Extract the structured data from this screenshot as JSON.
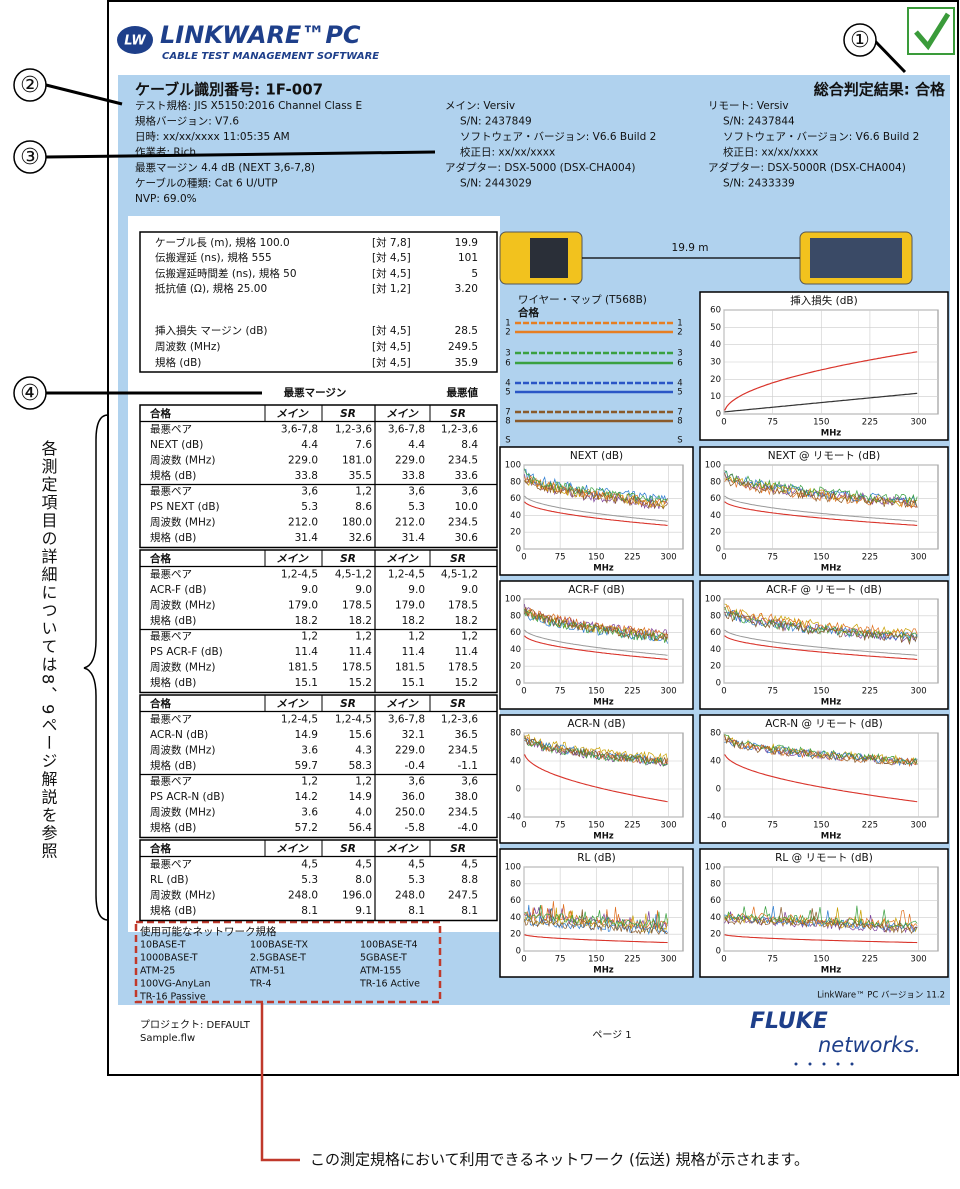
{
  "annotations": {
    "markers": [
      "①",
      "②",
      "③",
      "④"
    ],
    "side_note": "各測定項目の詳細については8、9ページ解説を参照",
    "caption": "この測定規格において利用できるネットワーク (伝送) 規格が示されます。"
  },
  "logo": {
    "badge": "LW",
    "brand": "LINKWARE™PC",
    "subtitle": "CABLE TEST MANAGEMENT SOFTWARE"
  },
  "header": {
    "cable_id": "ケーブル識別番号: 1F-007",
    "overall": "総合判定結果: 合格",
    "left": [
      "テスト規格: JIS X5150:2016 Channel Class E",
      "規格バージョン: V7.6",
      "日時: xx/xx/xxxx 11:05:35 AM",
      "作業者: Rich",
      "最悪マージン 4.4 dB (NEXT 3,6-7,8)",
      "ケーブルの種類: Cat 6 U/UTP",
      "NVP: 69.0%"
    ],
    "main": [
      "メイン: Versiv",
      "S/N: 2437849",
      "ソフトウェア・バージョン: V6.6 Build 2",
      "校正日: xx/xx/xxxx",
      "アダプター: DSX-5000 (DSX-CHA004)",
      "S/N: 2443029"
    ],
    "remote": [
      "リモート: Versiv",
      "S/N: 2437844",
      "ソフトウェア・バージョン: V6.6 Build 2",
      "校正日: xx/xx/xxxx",
      "アダプター: DSX-5000R (DSX-CHA004)",
      "S/N: 2433339"
    ]
  },
  "summary": {
    "rows": [
      [
        "ケーブル長 (m), 規格 100.0",
        "[対 7,8]",
        "19.9"
      ],
      [
        "伝搬遅延 (ns), 規格 555",
        "[対 4,5]",
        "101"
      ],
      [
        "伝搬遅延時間差 (ns), 規格 50",
        "[対 4,5]",
        "5"
      ],
      [
        "抵抗値 (Ω), 規格 25.00",
        "[対 1,2]",
        "3.20"
      ],
      [
        "挿入損失 マージン (dB)",
        "[対 4,5]",
        "28.5"
      ],
      [
        "周波数 (MHz)",
        "[対 4,5]",
        "249.5"
      ],
      [
        "規格 (dB)",
        "[対 4,5]",
        "35.9"
      ]
    ],
    "margin_header": "最悪マージン",
    "worst_header": "最悪値"
  },
  "tables": [
    {
      "rows": [
        [
          "合格",
          "メイン",
          "SR",
          "メイン",
          "SR"
        ],
        [
          "最悪ペア",
          "3,6-7,8",
          "1,2-3,6",
          "3,6-7,8",
          "1,2-3,6"
        ],
        [
          "NEXT (dB)",
          "4.4",
          "7.6",
          "4.4",
          "8.4"
        ],
        [
          "周波数 (MHz)",
          "229.0",
          "181.0",
          "229.0",
          "234.5"
        ],
        [
          "規格 (dB)",
          "33.8",
          "35.5",
          "33.8",
          "33.6"
        ],
        [
          "最悪ペア",
          "3,6",
          "1,2",
          "3,6",
          "3,6"
        ],
        [
          "PS NEXT (dB)",
          "5.3",
          "8.6",
          "5.3",
          "10.0"
        ],
        [
          "周波数 (MHz)",
          "212.0",
          "180.0",
          "212.0",
          "234.5"
        ],
        [
          "規格 (dB)",
          "31.4",
          "32.6",
          "31.4",
          "30.6"
        ]
      ]
    },
    {
      "rows": [
        [
          "合格",
          "メイン",
          "SR",
          "メイン",
          "SR"
        ],
        [
          "最悪ペア",
          "1,2-4,5",
          "4,5-1,2",
          "1,2-4,5",
          "4,5-1,2"
        ],
        [
          "ACR-F (dB)",
          "9.0",
          "9.0",
          "9.0",
          "9.0"
        ],
        [
          "周波数 (MHz)",
          "179.0",
          "178.5",
          "179.0",
          "178.5"
        ],
        [
          "規格 (dB)",
          "18.2",
          "18.2",
          "18.2",
          "18.2"
        ],
        [
          "最悪ペア",
          "1,2",
          "1,2",
          "1,2",
          "1,2"
        ],
        [
          "PS ACR-F (dB)",
          "11.4",
          "11.4",
          "11.4",
          "11.4"
        ],
        [
          "周波数 (MHz)",
          "181.5",
          "178.5",
          "181.5",
          "178.5"
        ],
        [
          "規格 (dB)",
          "15.1",
          "15.2",
          "15.1",
          "15.2"
        ]
      ]
    },
    {
      "rows": [
        [
          "合格",
          "メイン",
          "SR",
          "メイン",
          "SR"
        ],
        [
          "最悪ペア",
          "1,2-4,5",
          "1,2-4,5",
          "3,6-7,8",
          "1,2-3,6"
        ],
        [
          "ACR-N (dB)",
          "14.9",
          "15.6",
          "32.1",
          "36.5"
        ],
        [
          "周波数 (MHz)",
          "3.6",
          "4.3",
          "229.0",
          "234.5"
        ],
        [
          "規格 (dB)",
          "59.7",
          "58.3",
          "-0.4",
          "-1.1"
        ],
        [
          "最悪ペア",
          "1,2",
          "1,2",
          "3,6",
          "3,6"
        ],
        [
          "PS ACR-N (dB)",
          "14.2",
          "14.9",
          "36.0",
          "38.0"
        ],
        [
          "周波数 (MHz)",
          "3.6",
          "4.0",
          "250.0",
          "234.5"
        ],
        [
          "規格 (dB)",
          "57.2",
          "56.4",
          "-5.8",
          "-4.0"
        ]
      ]
    },
    {
      "rows": [
        [
          "合格",
          "メイン",
          "SR",
          "メイン",
          "SR"
        ],
        [
          "最悪ペア",
          "4,5",
          "4,5",
          "4,5",
          "4,5"
        ],
        [
          "RL (dB)",
          "5.3",
          "8.0",
          "5.3",
          "8.8"
        ],
        [
          "周波数 (MHz)",
          "248.0",
          "196.0",
          "248.0",
          "247.5"
        ],
        [
          "規格 (dB)",
          "8.1",
          "9.1",
          "8.1",
          "8.1"
        ]
      ]
    }
  ],
  "networks": {
    "title": "使用可能なネットワーク規格",
    "items": [
      "10BASE-T",
      "100BASE-TX",
      "100BASE-T4",
      "1000BASE-T",
      "2.5GBASE-T",
      "5GBASE-T",
      "ATM-25",
      "ATM-51",
      "ATM-155",
      "100VG-AnyLan",
      "TR-4",
      "TR-16 Active",
      "TR-16 Passive"
    ]
  },
  "cable_length": "19.9 m",
  "wiremap": {
    "title": "ワイヤー・マップ (T568B)",
    "status": "合格",
    "pins": [
      "1",
      "2",
      "3",
      "6",
      "4",
      "5",
      "7",
      "8",
      "S"
    ]
  },
  "graphs": {
    "xticks": [
      0,
      75,
      150,
      225,
      300
    ],
    "xlim": [
      0,
      330
    ],
    "x_label": "MHz",
    "items": [
      {
        "title": "挿入損失 (dB)",
        "yticks": [
          0,
          10,
          20,
          30,
          40,
          50,
          60
        ]
      },
      {
        "title": "NEXT (dB)",
        "yticks": [
          0,
          20,
          40,
          60,
          80,
          100
        ]
      },
      {
        "title": "NEXT @ リモート (dB)",
        "yticks": [
          0,
          20,
          40,
          60,
          80,
          100
        ]
      },
      {
        "title": "ACR-F (dB)",
        "yticks": [
          0,
          20,
          40,
          60,
          80,
          100
        ]
      },
      {
        "title": "ACR-F @ リモート (dB)",
        "yticks": [
          0,
          20,
          40,
          60,
          80,
          100
        ]
      },
      {
        "title": "ACR-N (dB)",
        "yticks": [
          -40,
          0,
          40,
          80
        ]
      },
      {
        "title": "ACR-N @ リモート (dB)",
        "yticks": [
          -40,
          0,
          40,
          80
        ]
      },
      {
        "title": "RL (dB)",
        "yticks": [
          0,
          20,
          40,
          60,
          80,
          100
        ]
      },
      {
        "title": "RL @ リモート (dB)",
        "yticks": [
          0,
          20,
          40,
          60,
          80,
          100
        ]
      }
    ]
  },
  "footer": {
    "version": "LinkWare™ PC バージョン 11.2",
    "project": "プロジェクト: DEFAULT",
    "file": "Sample.flw",
    "page": "ページ 1",
    "brand_top": "FLUKE",
    "brand_bottom": "networks."
  }
}
